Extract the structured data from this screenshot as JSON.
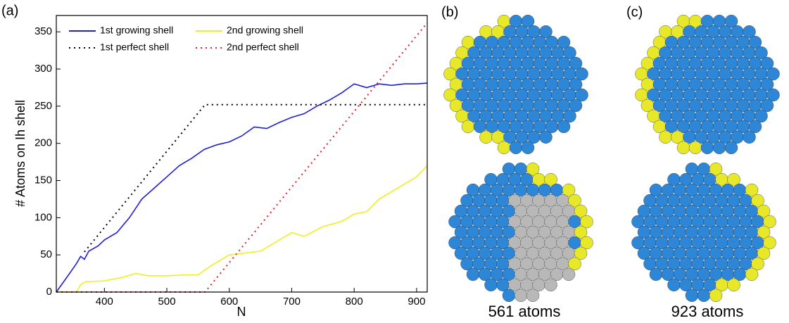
{
  "chart_data": {
    "type": "line",
    "panel_label": "(a)",
    "xlabel": "N",
    "ylabel": "# Atoms on Ih shell",
    "xlim": [
      323,
      917
    ],
    "xticks": [
      400,
      500,
      600,
      700,
      800,
      900
    ],
    "ylim": [
      0,
      372
    ],
    "yticks": [
      0,
      50,
      100,
      150,
      200,
      250,
      300,
      350
    ],
    "series": [
      {
        "name": "1st growing shell",
        "color": "#1f1fd6",
        "dash": false,
        "x": [
          323,
          340,
          355,
          362,
          368,
          375,
          390,
          400,
          420,
          440,
          460,
          480,
          500,
          520,
          540,
          560,
          580,
          600,
          620,
          640,
          660,
          680,
          700,
          720,
          740,
          760,
          780,
          800,
          820,
          840,
          860,
          880,
          900,
          917
        ],
        "values": [
          0,
          20,
          38,
          48,
          44,
          55,
          62,
          70,
          80,
          100,
          125,
          140,
          155,
          170,
          180,
          192,
          198,
          202,
          210,
          222,
          220,
          228,
          235,
          240,
          250,
          258,
          268,
          280,
          275,
          280,
          278,
          280,
          280,
          281
        ]
      },
      {
        "name": "2nd growing shell",
        "color": "#f0f01a",
        "dash": false,
        "x": [
          323,
          355,
          362,
          370,
          400,
          430,
          450,
          470,
          500,
          530,
          550,
          570,
          600,
          620,
          650,
          680,
          700,
          720,
          750,
          780,
          800,
          820,
          840,
          860,
          880,
          900,
          917
        ],
        "values": [
          0,
          0,
          10,
          14,
          15,
          20,
          25,
          22,
          22,
          23,
          23,
          35,
          50,
          52,
          55,
          70,
          80,
          75,
          88,
          95,
          105,
          108,
          125,
          135,
          145,
          155,
          170
        ]
      },
      {
        "name": "1st perfect shell",
        "color": "#000000",
        "dash": true,
        "x": [
          368,
          561,
          917
        ],
        "values": [
          54,
          252,
          252
        ]
      },
      {
        "name": "2nd perfect shell",
        "color": "#e02020",
        "dash": true,
        "x": [
          323,
          561,
          917
        ],
        "values": [
          0,
          0,
          362
        ]
      }
    ]
  },
  "panels": [
    {
      "label": "(b)",
      "caption": "561 atoms"
    },
    {
      "label": "(c)",
      "caption": "923 atoms"
    }
  ]
}
